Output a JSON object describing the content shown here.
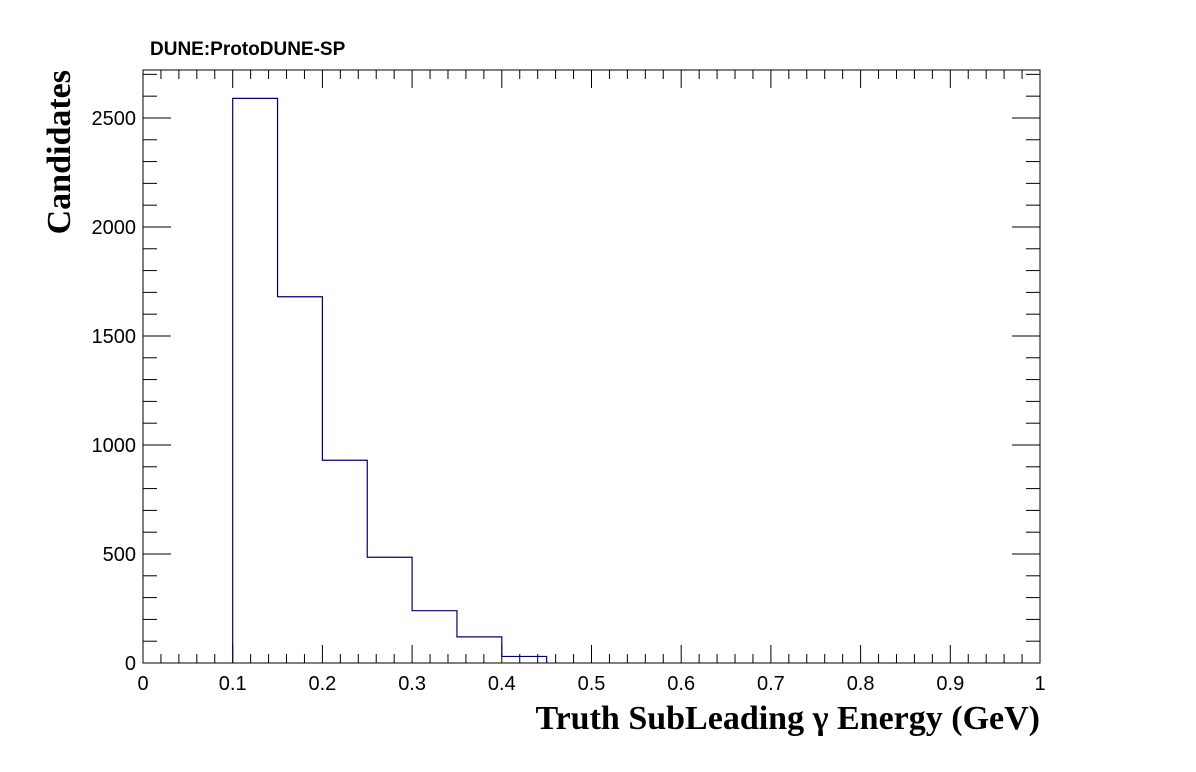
{
  "chart_data": {
    "type": "bar",
    "title": "DUNE:ProtoDUNE-SP",
    "xlabel": "Truth SubLeading  γ Energy (GeV)",
    "ylabel": "Candidates",
    "xlim": [
      0,
      1
    ],
    "ylim": [
      0,
      2720
    ],
    "grid": false,
    "bin_edges": [
      0.1,
      0.15,
      0.2,
      0.25,
      0.3,
      0.35,
      0.4,
      0.45
    ],
    "values": [
      2590,
      1680,
      930,
      485,
      240,
      120,
      30
    ],
    "x_ticks": [
      "0",
      "0.1",
      "0.2",
      "0.3",
      "0.4",
      "0.5",
      "0.6",
      "0.7",
      "0.8",
      "0.9",
      "1"
    ],
    "y_ticks": [
      "0",
      "500",
      "1000",
      "1500",
      "2000",
      "2500"
    ],
    "line_color": "#00007f"
  }
}
